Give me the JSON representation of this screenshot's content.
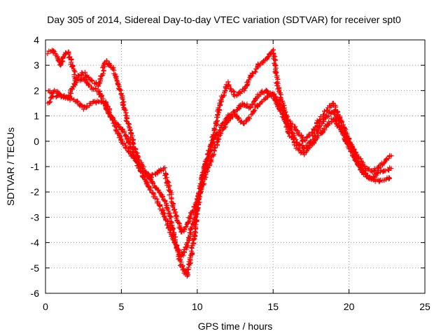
{
  "chart_data": {
    "type": "scatter",
    "title": "Day 305 of 2014, Sidereal Day-to-day VTEC variation (SDTVAR) for receiver spt0",
    "xlabel": "GPS time / hours",
    "ylabel": "SDTVAR / TECUs",
    "xlim": [
      0,
      25
    ],
    "ylim": [
      -6,
      4
    ],
    "xticks": [
      "0",
      "5",
      "10",
      "15",
      "20",
      "25"
    ],
    "yticks": [
      "-6",
      "-5",
      "-4",
      "-3",
      "-2",
      "-1",
      "0",
      "1",
      "2",
      "3",
      "4"
    ],
    "grid": true,
    "marker": "+",
    "color": "#ff0000",
    "series": [
      {
        "x": [
          0.2,
          0.4,
          0.7,
          1.0,
          1.3,
          1.5,
          2.0,
          2.5,
          3.0,
          3.5,
          4.0,
          4.5,
          5.0,
          5.5,
          6.0,
          6.5,
          7.0,
          7.5,
          8.0,
          8.5,
          9.0,
          9.3,
          9.5,
          9.8,
          10.0,
          10.5,
          11.0,
          11.5,
          12.0,
          12.5,
          13.0,
          13.5,
          14.0,
          14.5,
          15.0,
          15.3,
          15.6,
          16.0,
          16.5,
          17.0,
          17.5,
          18.0,
          18.5,
          19.0,
          19.5,
          20.0,
          20.5,
          21.0,
          21.5,
          22.0,
          22.5,
          22.8
        ],
        "y": [
          3.5,
          3.6,
          3.4,
          3.0,
          3.5,
          3.5,
          2.5,
          2.7,
          2.4,
          2.2,
          3.2,
          2.8,
          1.8,
          0.5,
          -0.5,
          -1.2,
          -1.6,
          -2.0,
          -2.5,
          -3.8,
          -5.0,
          -5.3,
          -4.8,
          -3.8,
          -2.5,
          -1.0,
          0.0,
          1.5,
          2.3,
          1.8,
          2.0,
          2.5,
          3.0,
          3.2,
          3.6,
          2.2,
          1.5,
          0.8,
          0.5,
          0.0,
          0.3,
          0.8,
          1.2,
          1.5,
          0.8,
          0.0,
          -0.5,
          -1.0,
          -1.2,
          -1.0,
          -0.7,
          -0.5
        ]
      },
      {
        "x": [
          0.2,
          0.4,
          0.7,
          1.0,
          1.5,
          2.0,
          2.5,
          3.0,
          3.5,
          4.0,
          4.5,
          5.0,
          5.5,
          6.0,
          6.5,
          7.0,
          7.5,
          8.0,
          8.5,
          9.0,
          9.3,
          9.6,
          10.0,
          10.3,
          10.6,
          11.0,
          11.5,
          12.0,
          12.5,
          13.0,
          13.5,
          14.0,
          14.5,
          15.0,
          15.5,
          16.0,
          16.5,
          17.0,
          17.5,
          18.0,
          18.5,
          19.0,
          19.5,
          20.0,
          20.5,
          21.0,
          21.5,
          22.0,
          22.5,
          22.8
        ],
        "y": [
          2.0,
          1.9,
          2.0,
          1.8,
          1.7,
          2.4,
          2.5,
          2.1,
          2.0,
          1.3,
          0.8,
          0.5,
          0.0,
          -0.8,
          -1.5,
          -2.0,
          -2.5,
          -3.2,
          -4.0,
          -4.5,
          -4.2,
          -3.5,
          -2.8,
          -1.5,
          -0.8,
          0.0,
          0.5,
          1.0,
          1.2,
          1.5,
          1.3,
          1.8,
          2.0,
          1.8,
          1.2,
          0.6,
          0.0,
          -0.3,
          0.0,
          0.5,
          1.0,
          1.2,
          0.5,
          0.0,
          -0.8,
          -1.3,
          -1.5,
          -1.2,
          -1.1,
          -1.1
        ]
      },
      {
        "x": [
          0.2,
          0.5,
          1.0,
          1.5,
          2.0,
          2.5,
          3.0,
          3.5,
          4.0,
          4.5,
          5.0,
          5.5,
          6.0,
          6.5,
          7.0,
          7.5,
          7.8,
          8.2,
          8.6,
          9.0,
          9.4,
          9.8,
          10.2,
          10.6,
          11.0,
          11.5,
          12.0,
          12.5,
          13.0,
          13.5,
          14.0,
          14.5,
          15.0,
          15.5,
          16.0,
          16.5,
          17.0,
          17.5,
          18.0,
          18.5,
          19.0,
          19.5,
          20.0,
          20.5,
          21.0,
          21.5,
          22.0,
          22.5,
          22.8
        ],
        "y": [
          1.5,
          1.8,
          1.8,
          1.7,
          1.6,
          1.3,
          1.5,
          1.6,
          1.5,
          0.7,
          0.0,
          -0.4,
          -0.8,
          -1.2,
          -1.4,
          -1.2,
          -1.1,
          -2.0,
          -3.0,
          -3.6,
          -3.2,
          -2.6,
          -2.0,
          -1.2,
          -0.6,
          0.3,
          0.8,
          1.1,
          0.7,
          1.0,
          1.4,
          1.7,
          1.9,
          1.4,
          0.4,
          -0.2,
          -0.5,
          -0.2,
          0.2,
          0.6,
          0.9,
          0.4,
          -0.2,
          -0.8,
          -1.2,
          -1.5,
          -1.6,
          -1.5,
          -1.4
        ]
      }
    ]
  }
}
